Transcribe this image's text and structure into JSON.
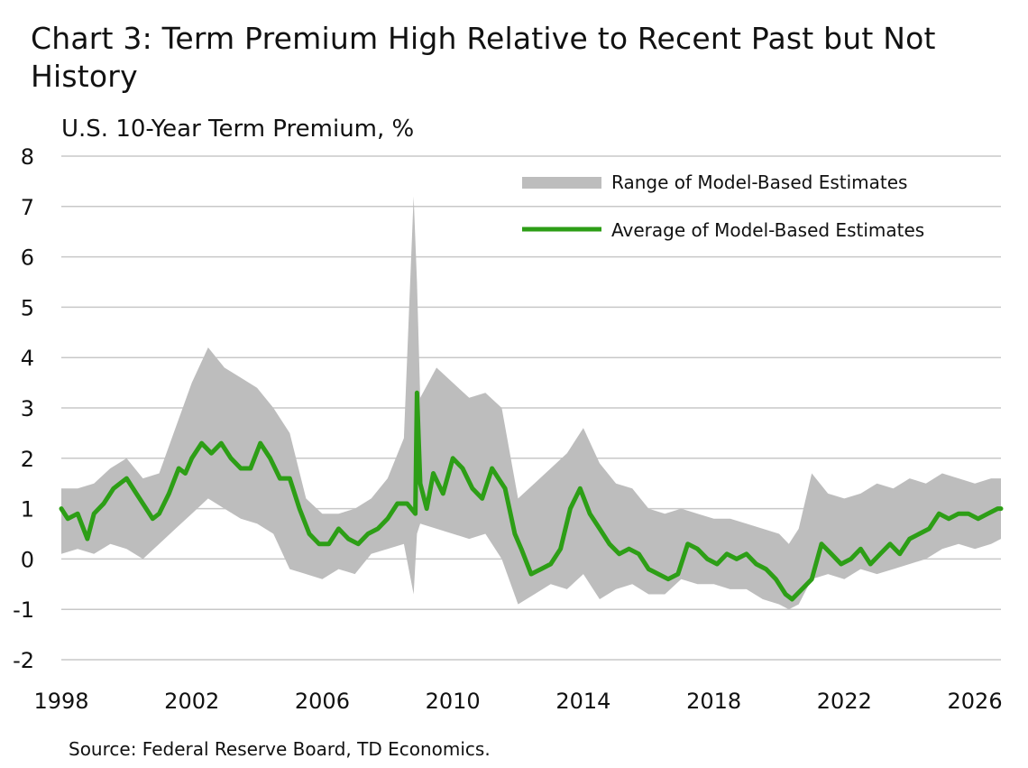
{
  "title": "Chart 3: Term Premium High Relative to Recent Past but Not History",
  "subtitle": "U.S. 10-Year Term Premium, %",
  "source": "Source: Federal Reserve Board, TD Economics.",
  "colors": {
    "range": "#bdbdbd",
    "average": "#2d9e16",
    "grid": "#c8c8c8"
  },
  "chart_data": {
    "type": "line",
    "xlim": [
      1998,
      2026.8
    ],
    "ylim": [
      -2,
      8
    ],
    "x_ticks": [
      "1998",
      "2002",
      "2006",
      "2010",
      "2014",
      "2018",
      "2022",
      "2026"
    ],
    "y_ticks": [
      "8",
      "7",
      "6",
      "5",
      "4",
      "3",
      "2",
      "1",
      "0",
      "-1",
      "-2"
    ],
    "grid": "horizontal",
    "legend_position": "top-right",
    "series": [
      {
        "name": "Range of Model-Based Estimates",
        "kind": "band",
        "x": [
          1998.0,
          1998.5,
          1999.0,
          1999.5,
          2000.0,
          2000.5,
          2001.0,
          2001.5,
          2002.0,
          2002.5,
          2003.0,
          2003.5,
          2004.0,
          2004.5,
          2005.0,
          2005.5,
          2006.0,
          2006.5,
          2007.0,
          2007.5,
          2008.0,
          2008.5,
          2008.8,
          2008.9,
          2009.0,
          2009.5,
          2010.0,
          2010.5,
          2011.0,
          2011.5,
          2012.0,
          2012.5,
          2013.0,
          2013.5,
          2014.0,
          2014.5,
          2015.0,
          2015.5,
          2016.0,
          2016.5,
          2017.0,
          2017.5,
          2018.0,
          2018.5,
          2019.0,
          2019.5,
          2020.0,
          2020.3,
          2020.6,
          2021.0,
          2021.5,
          2022.0,
          2022.5,
          2023.0,
          2023.5,
          2024.0,
          2024.5,
          2025.0,
          2025.5,
          2026.0,
          2026.5,
          2026.8
        ],
        "high": [
          1.4,
          1.4,
          1.5,
          1.8,
          2.0,
          1.6,
          1.7,
          2.6,
          3.5,
          4.2,
          3.8,
          3.6,
          3.4,
          3.0,
          2.5,
          1.2,
          0.9,
          0.9,
          1.0,
          1.2,
          1.6,
          2.4,
          7.2,
          5.5,
          3.2,
          3.8,
          3.5,
          3.2,
          3.3,
          3.0,
          1.2,
          1.5,
          1.8,
          2.1,
          2.6,
          1.9,
          1.5,
          1.4,
          1.0,
          0.9,
          1.0,
          0.9,
          0.8,
          0.8,
          0.7,
          0.6,
          0.5,
          0.3,
          0.6,
          1.7,
          1.3,
          1.2,
          1.3,
          1.5,
          1.4,
          1.6,
          1.5,
          1.7,
          1.6,
          1.5,
          1.6,
          1.6
        ],
        "low": [
          0.1,
          0.2,
          0.1,
          0.3,
          0.2,
          0.0,
          0.3,
          0.6,
          0.9,
          1.2,
          1.0,
          0.8,
          0.7,
          0.5,
          -0.2,
          -0.3,
          -0.4,
          -0.2,
          -0.3,
          0.1,
          0.2,
          0.3,
          -0.7,
          0.5,
          0.7,
          0.6,
          0.5,
          0.4,
          0.5,
          0.0,
          -0.9,
          -0.7,
          -0.5,
          -0.6,
          -0.3,
          -0.8,
          -0.6,
          -0.5,
          -0.7,
          -0.7,
          -0.4,
          -0.5,
          -0.5,
          -0.6,
          -0.6,
          -0.8,
          -0.9,
          -1.0,
          -0.9,
          -0.4,
          -0.3,
          -0.4,
          -0.2,
          -0.3,
          -0.2,
          -0.1,
          0.0,
          0.2,
          0.3,
          0.2,
          0.3,
          0.4
        ]
      },
      {
        "name": "Average of Model-Based Estimates",
        "kind": "line",
        "x": [
          1998.0,
          1998.2,
          1998.5,
          1998.8,
          1999.0,
          1999.3,
          1999.6,
          1999.8,
          2000.0,
          2000.3,
          2000.6,
          2000.8,
          2001.0,
          2001.3,
          2001.6,
          2001.8,
          2002.0,
          2002.3,
          2002.6,
          2002.9,
          2003.2,
          2003.5,
          2003.8,
          2004.1,
          2004.4,
          2004.7,
          2005.0,
          2005.3,
          2005.6,
          2005.9,
          2006.2,
          2006.5,
          2006.8,
          2007.1,
          2007.4,
          2007.7,
          2008.0,
          2008.3,
          2008.6,
          2008.85,
          2008.9,
          2009.0,
          2009.2,
          2009.4,
          2009.7,
          2010.0,
          2010.3,
          2010.6,
          2010.9,
          2011.2,
          2011.4,
          2011.6,
          2011.9,
          2012.1,
          2012.4,
          2012.7,
          2013.0,
          2013.3,
          2013.6,
          2013.9,
          2014.2,
          2014.5,
          2014.8,
          2015.1,
          2015.4,
          2015.7,
          2016.0,
          2016.3,
          2016.6,
          2016.9,
          2017.2,
          2017.5,
          2017.8,
          2018.1,
          2018.4,
          2018.7,
          2019.0,
          2019.3,
          2019.6,
          2019.9,
          2020.2,
          2020.4,
          2020.7,
          2021.0,
          2021.3,
          2021.6,
          2021.9,
          2022.2,
          2022.5,
          2022.8,
          2023.1,
          2023.4,
          2023.7,
          2024.0,
          2024.3,
          2024.6,
          2024.9,
          2025.2,
          2025.5,
          2025.8,
          2026.1,
          2026.4,
          2026.7,
          2026.8
        ],
        "y": [
          1.0,
          0.8,
          0.9,
          0.4,
          0.9,
          1.1,
          1.4,
          1.5,
          1.6,
          1.3,
          1.0,
          0.8,
          0.9,
          1.3,
          1.8,
          1.7,
          2.0,
          2.3,
          2.1,
          2.3,
          2.0,
          1.8,
          1.8,
          2.3,
          2.0,
          1.6,
          1.6,
          1.0,
          0.5,
          0.3,
          0.3,
          0.6,
          0.4,
          0.3,
          0.5,
          0.6,
          0.8,
          1.1,
          1.1,
          0.9,
          3.3,
          1.5,
          1.0,
          1.7,
          1.3,
          2.0,
          1.8,
          1.4,
          1.2,
          1.8,
          1.6,
          1.4,
          0.5,
          0.2,
          -0.3,
          -0.2,
          -0.1,
          0.2,
          1.0,
          1.4,
          0.9,
          0.6,
          0.3,
          0.1,
          0.2,
          0.1,
          -0.2,
          -0.3,
          -0.4,
          -0.3,
          0.3,
          0.2,
          0.0,
          -0.1,
          0.1,
          0.0,
          0.1,
          -0.1,
          -0.2,
          -0.4,
          -0.7,
          -0.8,
          -0.6,
          -0.4,
          0.3,
          0.1,
          -0.1,
          0.0,
          0.2,
          -0.1,
          0.1,
          0.3,
          0.1,
          0.4,
          0.5,
          0.6,
          0.9,
          0.8,
          0.9,
          0.9,
          0.8,
          0.9,
          1.0,
          1.0
        ]
      }
    ]
  }
}
